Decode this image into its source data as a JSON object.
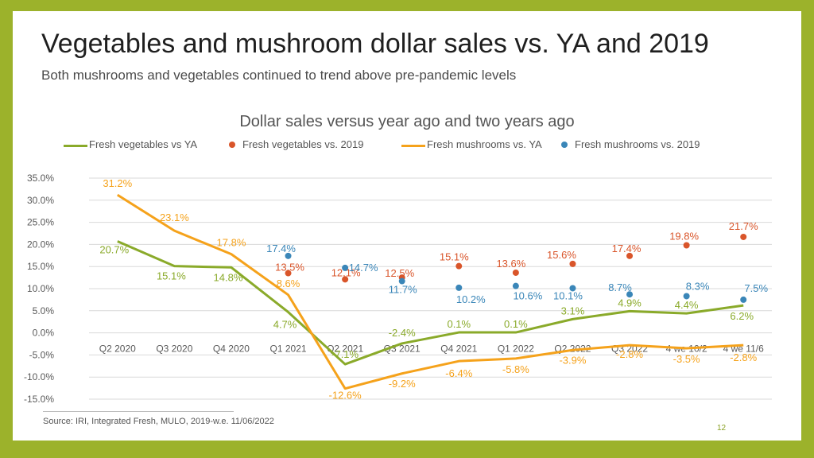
{
  "slide": {
    "title": "Vegetables and mushroom dollar sales vs. YA and 2019",
    "subtitle": "Both mushrooms and vegetables continued to trend above pre-pandemic levels",
    "source": "Source: IRI, Integrated Fresh, MULO, 2019-w.e. 11/06/2022",
    "page_number": "12",
    "colors": {
      "frame": "#9cb22b",
      "background": "#ffffff"
    }
  },
  "chart_data": {
    "type": "line",
    "title": "Dollar sales versus year ago and two years ago",
    "xlabel": "",
    "ylabel": "",
    "categories": [
      "Q2 2020",
      "Q3 2020",
      "Q4 2020",
      "Q1 2021",
      "Q2 2021",
      "Q3 2021",
      "Q4 2021",
      "Q1 2022",
      "Q2 2022",
      "Q3 2022",
      "4 we 10/2",
      "4 we 11/6"
    ],
    "ylim": [
      -15,
      35
    ],
    "yticks": [
      -15,
      -10,
      -5,
      0,
      5,
      10,
      15,
      20,
      25,
      30,
      35
    ],
    "ytick_labels": [
      "-15.0%",
      "-10.0%",
      "-5.0%",
      "0.0%",
      "5.0%",
      "10.0%",
      "15.0%",
      "20.0%",
      "25.0%",
      "30.0%",
      "35.0%"
    ],
    "grid": true,
    "legend_position": "top",
    "series": [
      {
        "name": "Fresh vegetables vs YA",
        "kind": "line",
        "color": "#8aaa2a",
        "values": [
          20.7,
          15.1,
          14.8,
          4.7,
          -7.1,
          -2.4,
          0.1,
          0.1,
          3.1,
          4.9,
          4.4,
          6.2
        ],
        "labels": [
          "20.7%",
          "15.1%",
          "14.8%",
          "4.7%",
          "-7.1%",
          "-2.4%",
          "0.1%",
          "0.1%",
          "3.1%",
          "4.9%",
          "4.4%",
          "6.2%"
        ]
      },
      {
        "name": "Fresh vegetables vs. 2019",
        "kind": "dot",
        "color": "#d9552a",
        "values": [
          null,
          null,
          null,
          13.5,
          12.1,
          12.5,
          15.1,
          13.6,
          15.6,
          17.4,
          19.8,
          21.7
        ],
        "labels": [
          null,
          null,
          null,
          "13.5%",
          "12.1%",
          "12.5%",
          "15.1%",
          "13.6%",
          "15.6%",
          "17.4%",
          "19.8%",
          "21.7%"
        ]
      },
      {
        "name": "Fresh mushrooms vs. YA",
        "kind": "line",
        "color": "#f5a21b",
        "values": [
          31.2,
          23.1,
          17.8,
          8.6,
          -12.6,
          -9.2,
          -6.4,
          -5.8,
          -3.9,
          -2.8,
          -3.5,
          -2.8
        ],
        "labels": [
          "31.2%",
          "23.1%",
          "17.8%",
          "8.6%",
          "-12.6%",
          "-9.2%",
          "-6.4%",
          "-5.8%",
          "-3.9%",
          "-2.8%",
          "-3.5%",
          "-2.8%"
        ]
      },
      {
        "name": "Fresh mushrooms vs. 2019",
        "kind": "dot",
        "color": "#3a86b8",
        "values": [
          null,
          null,
          null,
          17.4,
          14.7,
          11.7,
          10.2,
          10.6,
          10.1,
          8.7,
          8.3,
          7.5
        ],
        "labels": [
          null,
          null,
          null,
          "17.4%",
          "14.7%",
          "11.7%",
          "10.2%",
          "10.6%",
          "10.1%",
          "8.7%",
          "8.3%",
          "7.5%"
        ]
      }
    ]
  }
}
